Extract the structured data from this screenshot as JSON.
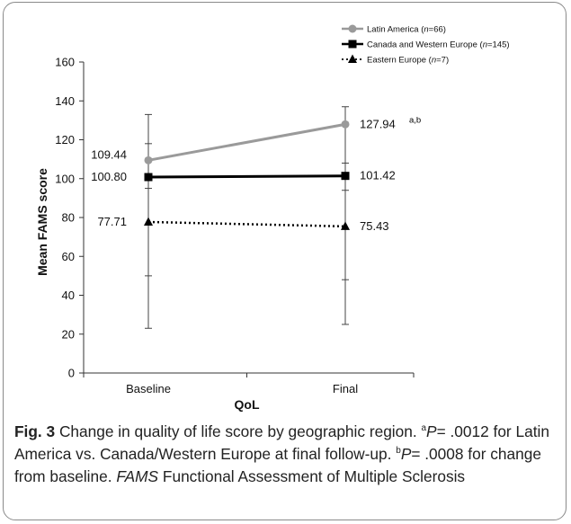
{
  "chart_data": {
    "type": "line",
    "categories": [
      "Baseline",
      "Final"
    ],
    "xlabel": "QoL",
    "ylabel": "Mean FAMS score",
    "ylim": [
      0,
      160
    ],
    "yticks": [
      0,
      20,
      40,
      60,
      80,
      100,
      120,
      140,
      160
    ],
    "grid": false,
    "legend_position": "top-right",
    "series": [
      {
        "name": "Latin America",
        "n_label": "n=66",
        "values": [
          109.44,
          127.94
        ],
        "labels": [
          "109.44",
          "127.94"
        ],
        "label_superscripts": [
          "",
          "a,b"
        ],
        "error_low": [
          23,
          25
        ],
        "error_high": [
          133,
          137
        ],
        "color": "#9a9a9a",
        "marker": "circle",
        "dash": "solid"
      },
      {
        "name": "Canada and Western Europe",
        "n_label": "n=145",
        "values": [
          100.8,
          101.42
        ],
        "labels": [
          "100.80",
          "101.42"
        ],
        "label_superscripts": [
          "",
          ""
        ],
        "error_low": [
          95,
          94
        ],
        "error_high": [
          118,
          108
        ],
        "color": "#000000",
        "marker": "square",
        "dash": "solid"
      },
      {
        "name": "Eastern Europe",
        "n_label": "n=7",
        "values": [
          77.71,
          75.43
        ],
        "labels": [
          "77.71",
          "75.43"
        ],
        "label_superscripts": [
          "",
          ""
        ],
        "error_low": [
          50,
          48
        ],
        "error_high": [
          101,
          103
        ],
        "color": "#000000",
        "marker": "triangle",
        "dash": "dotted"
      }
    ]
  },
  "caption": {
    "fig_label": "Fig. 3",
    "title": "Change in quality of life score by geographic region.",
    "note_a_marker": "a",
    "note_a_italic": "P",
    "note_a_text": "= .0012 for Latin America vs. Canada/Western Europe at final follow-up.",
    "note_b_marker": "b",
    "note_b_italic": "P",
    "note_b_text": "= .0008 for change from baseline.",
    "abbr_term": "FAMS",
    "abbr_text": "Functional Assessment of Multiple Sclerosis"
  }
}
